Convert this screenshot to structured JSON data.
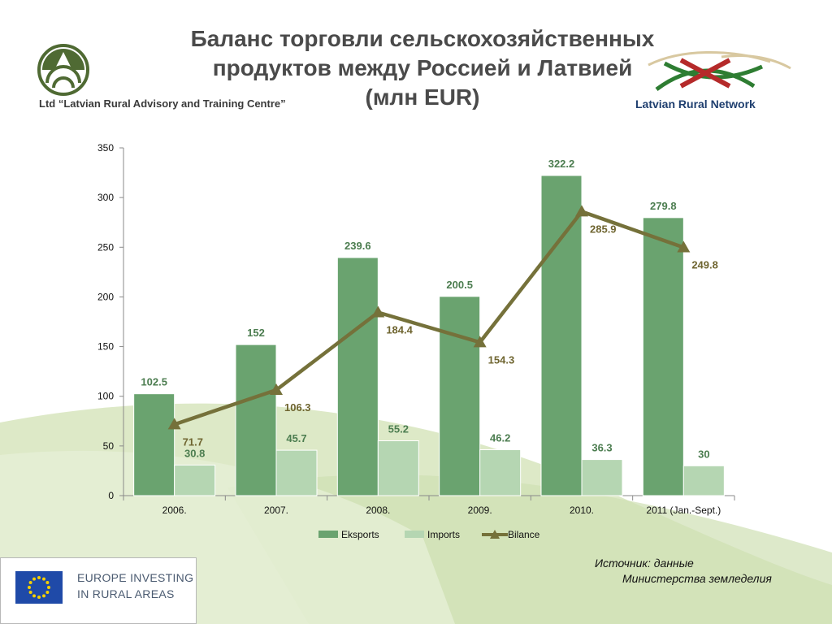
{
  "header": {
    "title_lines": [
      "Баланс торговли сельскохозяйственных",
      "продуктов между Россией и Латвией",
      "(млн EUR)"
    ],
    "left_logo_text": "Ltd “Latvian Rural Advisory and Training Centre”",
    "right_logo_text": "Latvian Rural Network"
  },
  "footer": {
    "eu_lines": [
      "EUROPE INVESTING",
      "IN RURAL AREAS"
    ],
    "source_lines": [
      "Источник:  данные",
      "Министерства земледелия"
    ]
  },
  "colors": {
    "eksports": "#6aa36f",
    "imports": "#b5d6b2",
    "bilance": "#75713a",
    "eksports_label": "#4c7d50",
    "bilance_label": "#6f6530",
    "background_wave": "#d9e7c2"
  },
  "chart_data": {
    "type": "bar",
    "categories": [
      "2006.",
      "2007.",
      "2008.",
      "2009.",
      "2010.",
      "2011 (Jan.-Sept.)"
    ],
    "series": [
      {
        "name": "Eksports",
        "type": "bar",
        "values": [
          102.5,
          152,
          239.6,
          200.5,
          322.2,
          279.8
        ]
      },
      {
        "name": "Imports",
        "type": "bar",
        "values": [
          30.8,
          45.7,
          55.2,
          46.2,
          36.3,
          30
        ]
      },
      {
        "name": "Bilance",
        "type": "line",
        "marker": "triangle",
        "values": [
          71.7,
          106.3,
          184.4,
          154.3,
          285.9,
          249.8
        ]
      }
    ],
    "ylim": [
      0,
      350
    ],
    "yticks": [
      0,
      50,
      100,
      150,
      200,
      250,
      300,
      350
    ],
    "legend": "bottom",
    "grid": false
  }
}
